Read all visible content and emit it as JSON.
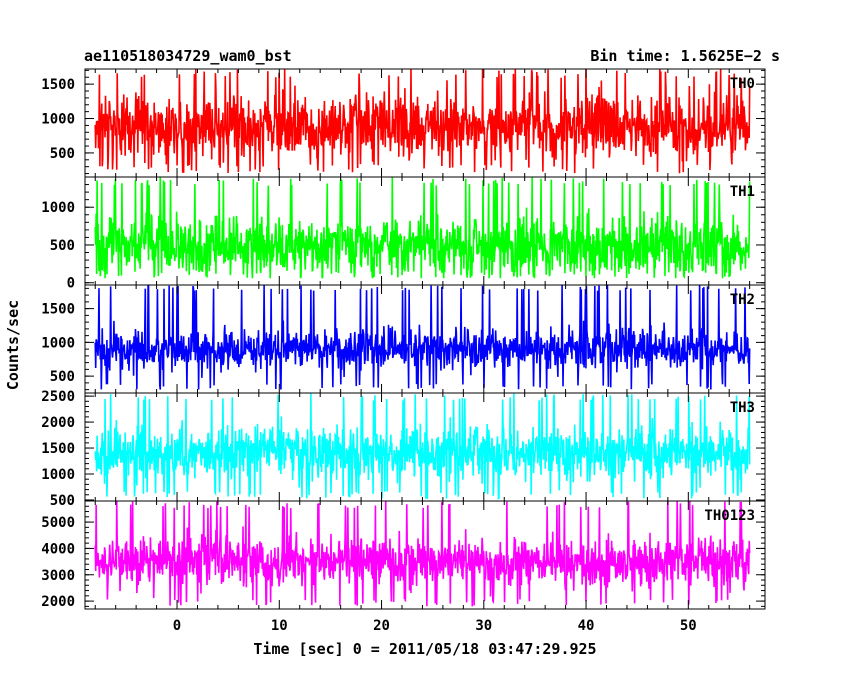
{
  "chart_data": {
    "type": "line",
    "title_left": "ae110518034729_wam0_bst",
    "title_right": "Bin time: 1.5625E−2 s",
    "xlabel": "Time [sec] 0 = 2011/05/18 03:47:29.925",
    "ylabel": "Counts/sec",
    "xlim": [
      -9,
      57.5
    ],
    "x_data_range": [
      -8,
      56
    ],
    "x_ticks": [
      0,
      10,
      20,
      30,
      40,
      50
    ],
    "x_tick_labels": [
      "0",
      "10",
      "20",
      "30",
      "40",
      "50"
    ],
    "x_minor_step": 2,
    "panels": [
      {
        "label": "TH0",
        "color": "#ff0000",
        "ylim": [
          150,
          1720
        ],
        "y_ticks": [
          500,
          1000,
          1500
        ],
        "y_tick_labels": [
          "500",
          "1000",
          "1500"
        ],
        "y_minor_step": 100,
        "mean": 900,
        "spread": 450,
        "min": 200,
        "max": 1720
      },
      {
        "label": "TH1",
        "color": "#00ff00",
        "ylim": [
          -30,
          1400
        ],
        "y_ticks": [
          0,
          500,
          1000
        ],
        "y_tick_labels": [
          "0",
          "500",
          "1000"
        ],
        "y_minor_step": 100,
        "mean": 500,
        "spread": 380,
        "min": 60,
        "max": 1400
      },
      {
        "label": "TH2",
        "color": "#0000ff",
        "ylim": [
          250,
          1850
        ],
        "y_ticks": [
          500,
          1000,
          1500
        ],
        "y_tick_labels": [
          "500",
          "1000",
          "1500"
        ],
        "y_minor_step": 100,
        "mean": 900,
        "spread": 280,
        "min": 300,
        "max": 1850
      },
      {
        "label": "TH3",
        "color": "#00ffff",
        "ylim": [
          480,
          2560
        ],
        "y_ticks": [
          500,
          1000,
          1500,
          2000,
          2500
        ],
        "y_tick_labels": [
          "500",
          "1000",
          "1500",
          "2000",
          "2500"
        ],
        "y_minor_step": 100,
        "mean": 1400,
        "spread": 480,
        "min": 520,
        "max": 2560
      },
      {
        "label": "TH0123",
        "color": "#ff00ff",
        "ylim": [
          1700,
          5800
        ],
        "y_ticks": [
          2000,
          3000,
          4000,
          5000
        ],
        "y_tick_labels": [
          "2000",
          "3000",
          "4000",
          "5000"
        ],
        "y_minor_step": 200,
        "mean": 3500,
        "spread": 900,
        "min": 1800,
        "max": 5800
      }
    ]
  }
}
